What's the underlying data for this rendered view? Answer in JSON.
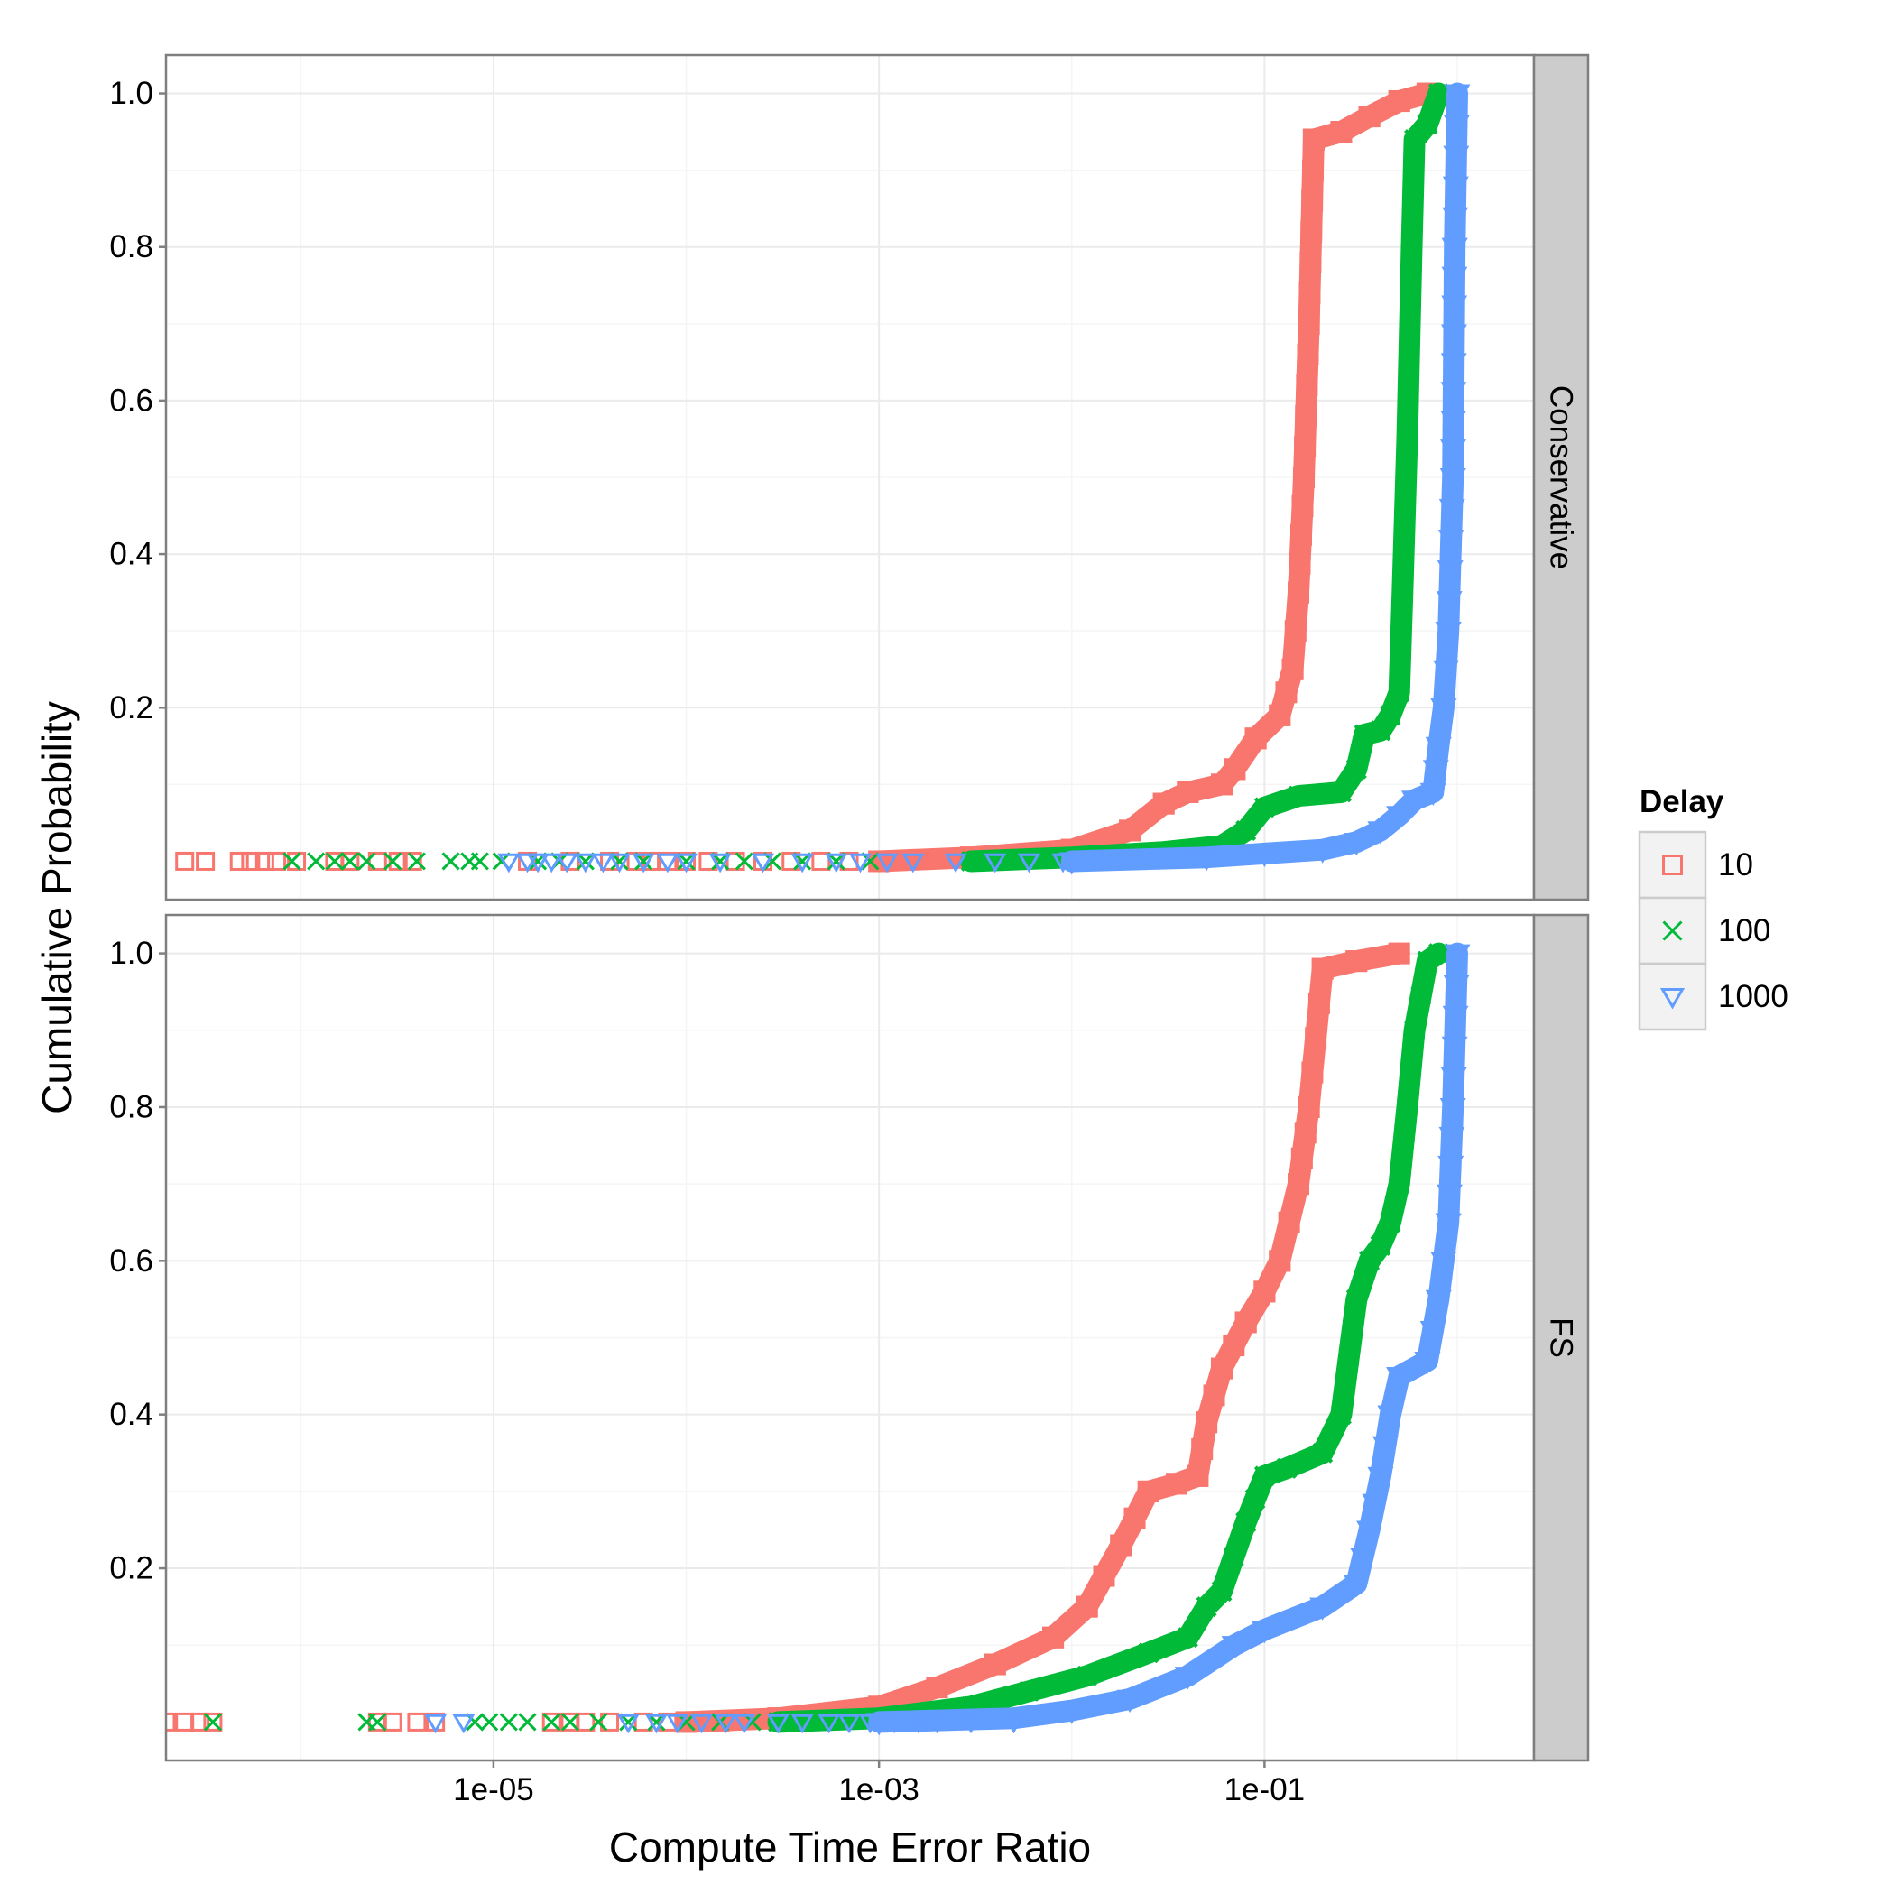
{
  "chart_data": {
    "type": "scatter",
    "xlabel": "Compute Time Error Ratio",
    "ylabel": "Cumulative Probability",
    "x_scale": "log10",
    "xlim": [
      2e-07,
      2.5
    ],
    "ylim": [
      -0.05,
      1.05
    ],
    "x_ticks": [
      {
        "value": 1e-05,
        "label": "1e-05"
      },
      {
        "value": 0.001,
        "label": "1e-03"
      },
      {
        "value": 0.1,
        "label": "1e-01"
      }
    ],
    "y_ticks": [
      {
        "value": 0.2,
        "label": "0.2"
      },
      {
        "value": 0.4,
        "label": "0.4"
      },
      {
        "value": 0.6,
        "label": "0.6"
      },
      {
        "value": 0.8,
        "label": "0.8"
      },
      {
        "value": 1.0,
        "label": "1.0"
      }
    ],
    "grid": true,
    "legend": {
      "title": "Delay",
      "position": "right",
      "entries": [
        {
          "label": "10",
          "color": "#F8766D",
          "shape": "square"
        },
        {
          "label": "100",
          "color": "#00BA38",
          "shape": "cross"
        },
        {
          "label": "1000",
          "color": "#619CFF",
          "shape": "triangle-down"
        }
      ]
    },
    "facets": [
      {
        "strip": "Conservative",
        "series": [
          {
            "name": "10",
            "color": "#F8766D",
            "shape": "square",
            "curve": [
              [
                0.001,
                0.0
              ],
              [
                0.003,
                0.005
              ],
              [
                0.01,
                0.015
              ],
              [
                0.02,
                0.04
              ],
              [
                0.03,
                0.075
              ],
              [
                0.04,
                0.09
              ],
              [
                0.06,
                0.1
              ],
              [
                0.07,
                0.12
              ],
              [
                0.09,
                0.16
              ],
              [
                0.12,
                0.19
              ],
              [
                0.14,
                0.25
              ],
              [
                0.15,
                0.35
              ],
              [
                0.16,
                0.5
              ],
              [
                0.17,
                0.7
              ],
              [
                0.18,
                0.94
              ],
              [
                0.25,
                0.95
              ],
              [
                0.35,
                0.97
              ],
              [
                0.5,
                0.99
              ],
              [
                0.7,
                1.0
              ]
            ],
            "scatter_x": [
              2.5e-07,
              3.2e-07,
              4.8e-07,
              5.5e-07,
              6.5e-07,
              7.5e-07,
              9.5e-07,
              1.5e-06,
              1.8e-06,
              2.5e-06,
              3.2e-06,
              3.8e-06,
              1.5e-05,
              2.5e-05,
              4e-05,
              5.5e-05,
              6.5e-05,
              8e-05,
              0.0001,
              0.00013,
              0.00018,
              0.00025,
              0.00035,
              0.0005,
              0.0007
            ]
          },
          {
            "name": "100",
            "color": "#00BA38",
            "shape": "cross",
            "curve": [
              [
                0.003,
                0.0
              ],
              [
                0.01,
                0.005
              ],
              [
                0.03,
                0.012
              ],
              [
                0.06,
                0.02
              ],
              [
                0.08,
                0.04
              ],
              [
                0.1,
                0.07
              ],
              [
                0.15,
                0.085
              ],
              [
                0.25,
                0.09
              ],
              [
                0.3,
                0.12
              ],
              [
                0.33,
                0.165
              ],
              [
                0.4,
                0.17
              ],
              [
                0.45,
                0.19
              ],
              [
                0.5,
                0.22
              ],
              [
                0.52,
                0.35
              ],
              [
                0.55,
                0.55
              ],
              [
                0.58,
                0.8
              ],
              [
                0.6,
                0.94
              ],
              [
                0.7,
                0.96
              ],
              [
                0.8,
                1.0
              ]
            ],
            "scatter_x": [
              9e-07,
              1.2e-06,
              1.5e-06,
              1.8e-06,
              2.2e-06,
              3e-06,
              4e-06,
              6e-06,
              7.5e-06,
              8.5e-06,
              1.1e-05,
              1.7e-05,
              2.2e-05,
              3e-05,
              4.5e-05,
              6e-05,
              0.0001,
              0.00015,
              0.0002,
              0.00028,
              0.0004,
              0.0006,
              0.0009
            ]
          },
          {
            "name": "1000",
            "color": "#619CFF",
            "shape": "triangle-down",
            "curve": [
              [
                0.01,
                0.0
              ],
              [
                0.05,
                0.005
              ],
              [
                0.1,
                0.01
              ],
              [
                0.2,
                0.015
              ],
              [
                0.3,
                0.025
              ],
              [
                0.4,
                0.04
              ],
              [
                0.5,
                0.06
              ],
              [
                0.6,
                0.08
              ],
              [
                0.75,
                0.09
              ],
              [
                0.8,
                0.15
              ],
              [
                0.85,
                0.2
              ],
              [
                0.9,
                0.3
              ],
              [
                0.95,
                0.5
              ],
              [
                0.97,
                0.8
              ],
              [
                1.0,
                1.0
              ]
            ],
            "scatter_x": [
              1.2e-05,
              1.5e-05,
              1.7e-05,
              2e-05,
              2.4e-05,
              3e-05,
              3.7e-05,
              4.5e-05,
              6e-05,
              8e-05,
              0.0001,
              0.00015,
              0.00025,
              0.0004,
              0.0006,
              0.0008,
              0.0011,
              0.0015,
              0.0025,
              0.004,
              0.006,
              0.009
            ]
          }
        ]
      },
      {
        "strip": "FS",
        "series": [
          {
            "name": "10",
            "color": "#F8766D",
            "shape": "square",
            "curve": [
              [
                0.0001,
                0.0
              ],
              [
                0.0003,
                0.005
              ],
              [
                0.001,
                0.02
              ],
              [
                0.002,
                0.045
              ],
              [
                0.004,
                0.075
              ],
              [
                0.008,
                0.11
              ],
              [
                0.012,
                0.15
              ],
              [
                0.018,
                0.23
              ],
              [
                0.025,
                0.3
              ],
              [
                0.035,
                0.31
              ],
              [
                0.045,
                0.32
              ],
              [
                0.05,
                0.39
              ],
              [
                0.06,
                0.46
              ],
              [
                0.08,
                0.52
              ],
              [
                0.1,
                0.56
              ],
              [
                0.12,
                0.6
              ],
              [
                0.15,
                0.7
              ],
              [
                0.17,
                0.8
              ],
              [
                0.2,
                0.98
              ],
              [
                0.3,
                0.99
              ],
              [
                0.5,
                1.0
              ]
            ],
            "scatter_x": [
              2e-07,
              2.5e-07,
              3e-07,
              3.5e-07,
              2.5e-06,
              3e-06,
              4e-06,
              5e-06,
              2e-05,
              2.5e-05,
              3e-05,
              4e-05,
              6e-05,
              8e-05,
              0.00011,
              0.00015
            ]
          },
          {
            "name": "100",
            "color": "#00BA38",
            "shape": "cross",
            "curve": [
              [
                0.0003,
                0.0
              ],
              [
                0.001,
                0.005
              ],
              [
                0.003,
                0.02
              ],
              [
                0.006,
                0.04
              ],
              [
                0.012,
                0.06
              ],
              [
                0.025,
                0.09
              ],
              [
                0.04,
                0.11
              ],
              [
                0.05,
                0.15
              ],
              [
                0.06,
                0.17
              ],
              [
                0.08,
                0.26
              ],
              [
                0.1,
                0.32
              ],
              [
                0.13,
                0.33
              ],
              [
                0.2,
                0.35
              ],
              [
                0.25,
                0.4
              ],
              [
                0.3,
                0.55
              ],
              [
                0.35,
                0.6
              ],
              [
                0.4,
                0.62
              ],
              [
                0.45,
                0.65
              ],
              [
                0.5,
                0.7
              ],
              [
                0.55,
                0.8
              ],
              [
                0.6,
                0.9
              ],
              [
                0.7,
                0.99
              ],
              [
                0.8,
                1.0
              ]
            ],
            "scatter_x": [
              3.5e-07,
              2.2e-06,
              2.5e-06,
              8e-06,
              9.5e-06,
              1.2e-05,
              1.5e-05,
              2e-05,
              2.5e-05,
              3.5e-05,
              5e-05,
              7e-05,
              0.0001,
              0.00015,
              0.00022,
              0.0003
            ]
          },
          {
            "name": "1000",
            "color": "#619CFF",
            "shape": "triangle-down",
            "curve": [
              [
                0.001,
                0.0
              ],
              [
                0.005,
                0.005
              ],
              [
                0.01,
                0.015
              ],
              [
                0.02,
                0.03
              ],
              [
                0.04,
                0.06
              ],
              [
                0.07,
                0.1
              ],
              [
                0.1,
                0.12
              ],
              [
                0.2,
                0.15
              ],
              [
                0.3,
                0.18
              ],
              [
                0.35,
                0.25
              ],
              [
                0.4,
                0.32
              ],
              [
                0.45,
                0.4
              ],
              [
                0.5,
                0.45
              ],
              [
                0.7,
                0.47
              ],
              [
                0.8,
                0.55
              ],
              [
                0.9,
                0.65
              ],
              [
                0.95,
                0.8
              ],
              [
                1.0,
                1.0
              ]
            ],
            "scatter_x": [
              5e-06,
              7e-06,
              5e-05,
              7e-05,
              9e-05,
              0.00012,
              0.00016,
              0.0002,
              0.0003,
              0.0004,
              0.00055,
              0.0007,
              0.0009,
              0.0012,
              0.0016,
              0.002,
              0.003,
              0.005
            ]
          }
        ]
      }
    ]
  }
}
